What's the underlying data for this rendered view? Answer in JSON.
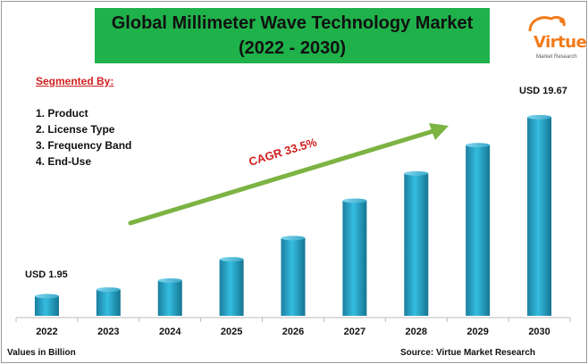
{
  "header": {
    "title_line1": "Global Millimeter Wave Technology Market",
    "title_line2": "(2022 - 2030)"
  },
  "logo": {
    "word": "Virtue",
    "subtitle": "Market Research"
  },
  "segments": {
    "title": "Segmented By:",
    "items": [
      "1. Product",
      "2. License Type",
      "3. Frequency Band",
      "4. End-Use"
    ]
  },
  "annotations": {
    "cagr": "CAGR 33.5%",
    "first_value": "USD 1.95",
    "last_value": "USD 19.67"
  },
  "footer": {
    "units": "Values in Billion",
    "source": "Source: Virtue Market Research"
  },
  "colors": {
    "title_bg": "#1fb14a",
    "bar": "#1e9fc4",
    "arrow": "#7cb342",
    "cagr_text": "#d11f1f",
    "accent": "#f27a1a"
  },
  "chart_data": {
    "type": "bar",
    "categories": [
      "2022",
      "2023",
      "2024",
      "2025",
      "2026",
      "2027",
      "2028",
      "2029",
      "2030"
    ],
    "values": [
      1.95,
      2.6,
      3.5,
      5.6,
      7.7,
      11.4,
      14.1,
      16.9,
      19.67
    ],
    "title": "Global Millimeter Wave Technology Market (2022 - 2030)",
    "xlabel": "",
    "ylabel": "",
    "ylim": [
      0,
      21.2
    ],
    "grid": false,
    "legend": "none",
    "data_labels": {
      "2022": "USD 1.95",
      "2030": "USD 19.67"
    }
  }
}
